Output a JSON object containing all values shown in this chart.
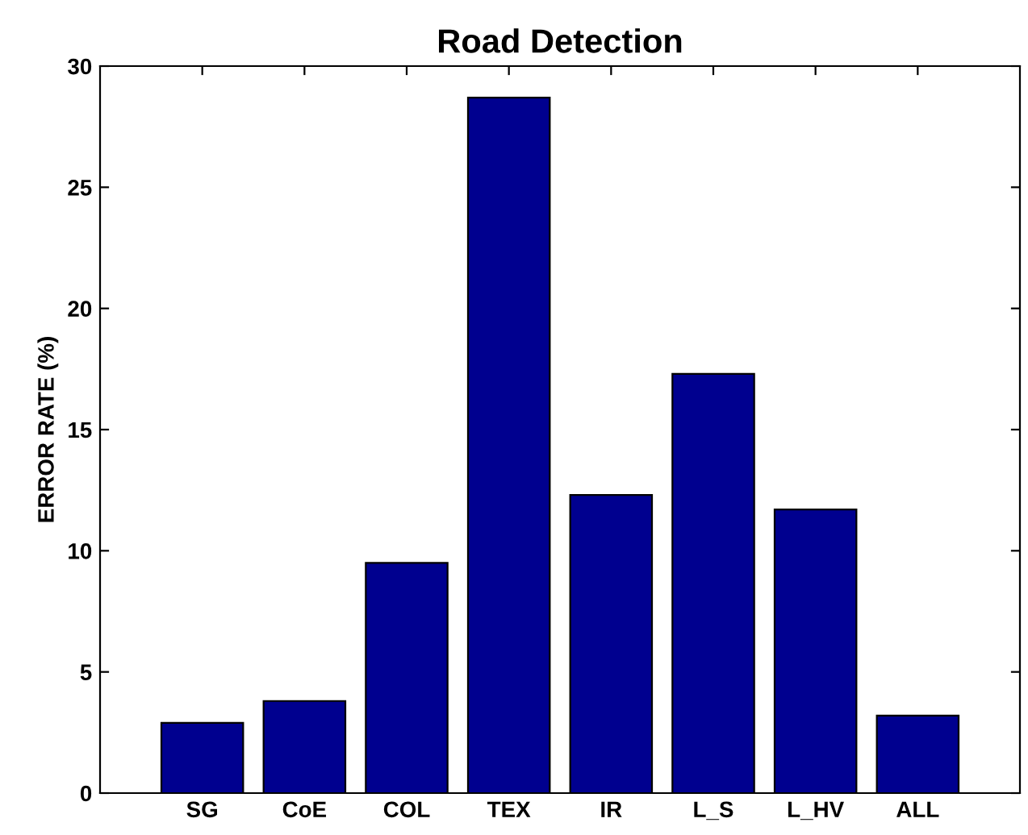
{
  "chart_data": {
    "type": "bar",
    "title": "Road Detection",
    "ylabel": "ERROR RATE (%)",
    "categories": [
      "SG",
      "CoE",
      "COL",
      "TEX",
      "IR",
      "L_S",
      "L_HV",
      "ALL"
    ],
    "values": [
      2.9,
      3.8,
      9.5,
      28.7,
      12.3,
      17.3,
      11.7,
      3.2
    ],
    "color": "#00008f",
    "ylim": [
      0,
      30
    ],
    "yticks": [
      0,
      5,
      10,
      15,
      20,
      25,
      30
    ],
    "grid": false,
    "legend": false
  }
}
